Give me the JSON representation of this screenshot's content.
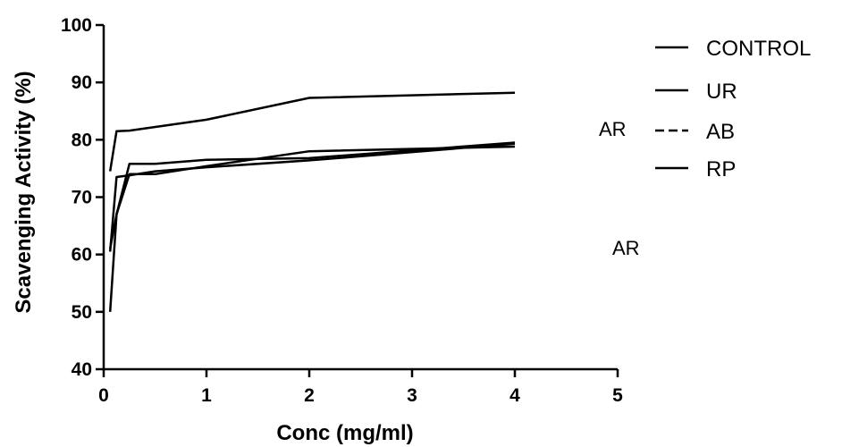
{
  "chart_data": {
    "type": "line",
    "xlabel": "Conc (mg/ml)",
    "ylabel": "Scavenging Activity (%)",
    "xlim": [
      0,
      5
    ],
    "ylim": [
      40,
      100
    ],
    "x_ticks": [
      "0",
      "1",
      "2",
      "3",
      "4",
      "5"
    ],
    "y_ticks": [
      "40",
      "50",
      "60",
      "70",
      "80",
      "90",
      "100"
    ],
    "grid": false,
    "legend_position": "right",
    "series": [
      {
        "name": "CONTROL",
        "color": "#000000",
        "points": [
          [
            0.0625,
            74.5
          ],
          [
            0.125,
            81.5
          ],
          [
            0.25,
            81.6
          ],
          [
            1,
            83.5
          ],
          [
            2,
            87.3
          ],
          [
            4,
            88.2
          ]
        ]
      },
      {
        "name": "UR",
        "color": "#000000",
        "points": [
          [
            0.0625,
            61.0
          ],
          [
            0.125,
            67.0
          ],
          [
            0.25,
            75.8
          ],
          [
            0.5,
            75.8
          ],
          [
            1,
            76.5
          ],
          [
            2,
            76.8
          ],
          [
            4,
            79.5
          ]
        ]
      },
      {
        "name": "AB",
        "color": "#000000",
        "points": [
          [
            0.0625,
            50.0
          ],
          [
            0.125,
            67.0
          ],
          [
            0.25,
            74.0
          ],
          [
            0.5,
            74.0
          ],
          [
            1,
            75.4
          ],
          [
            2,
            78.0
          ],
          [
            4,
            78.8
          ]
        ]
      },
      {
        "name": "RP",
        "color": "#000000",
        "points": [
          [
            0.0625,
            60.5
          ],
          [
            0.125,
            73.5
          ],
          [
            0.25,
            73.8
          ],
          [
            0.5,
            74.5
          ],
          [
            1,
            75.2
          ],
          [
            2,
            76.4
          ],
          [
            4,
            79.3
          ]
        ]
      }
    ],
    "annotations": [
      "AR",
      "AR"
    ]
  }
}
